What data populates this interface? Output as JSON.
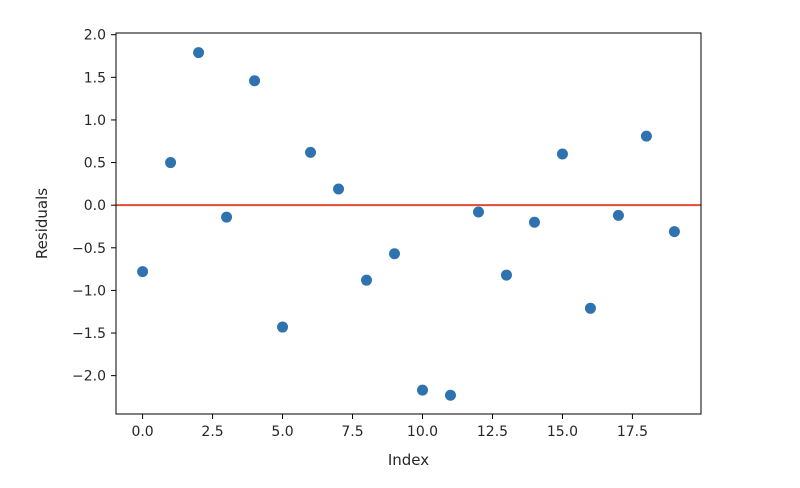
{
  "chart_data": {
    "type": "scatter",
    "title": "",
    "xlabel": "Index",
    "ylabel": "Residuals",
    "xlim": [
      -0.95,
      19.95
    ],
    "ylim": [
      -2.45,
      2.02
    ],
    "x_ticks": [
      0.0,
      2.5,
      5.0,
      7.5,
      10.0,
      12.5,
      15.0,
      17.5
    ],
    "x_tick_labels": [
      "0.0",
      "2.5",
      "5.0",
      "7.5",
      "10.0",
      "12.5",
      "15.0",
      "17.5"
    ],
    "y_ticks": [
      -2.0,
      -1.5,
      -1.0,
      -0.5,
      0.0,
      0.5,
      1.0,
      1.5,
      2.0
    ],
    "y_tick_labels": [
      "−2.0",
      "−1.5",
      "−1.0",
      "−0.5",
      "0.0",
      "0.5",
      "1.0",
      "1.5",
      "2.0"
    ],
    "grid": false,
    "series": [
      {
        "color": "#2f72b0",
        "x": [
          0,
          1,
          2,
          3,
          4,
          5,
          6,
          7,
          8,
          9,
          10,
          11,
          12,
          13,
          14,
          15,
          16,
          17,
          18,
          19
        ],
        "y": [
          -0.78,
          0.5,
          1.79,
          -0.14,
          1.46,
          -1.43,
          0.62,
          0.19,
          -0.88,
          -0.57,
          -2.17,
          -2.23,
          -0.08,
          -0.82,
          -0.2,
          0.6,
          -1.21,
          -0.12,
          0.81,
          -0.31
        ]
      }
    ],
    "reference_lines": [
      {
        "orientation": "horizontal",
        "y": 0.0,
        "color": "#e24a33"
      }
    ]
  }
}
